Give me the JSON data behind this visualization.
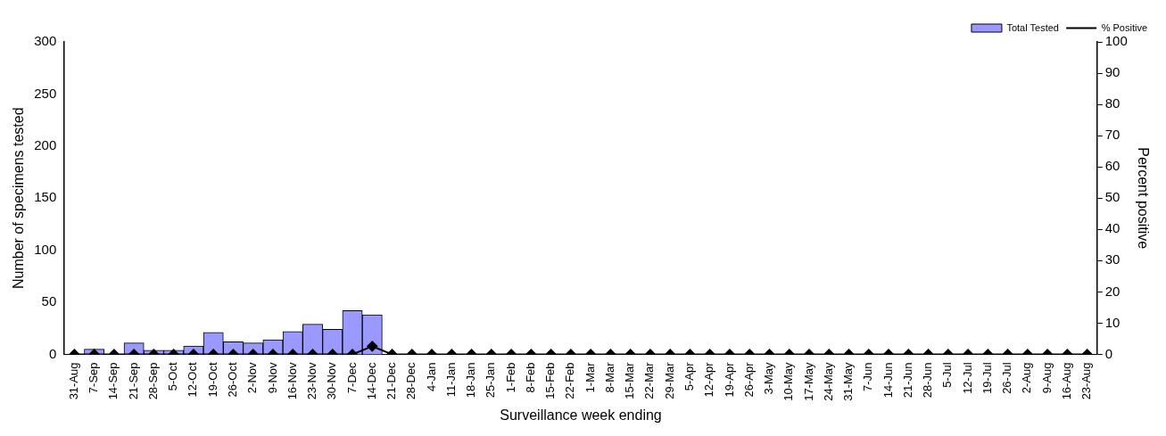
{
  "chart_data": {
    "type": "bar",
    "xlabel": "Surveillance week ending",
    "ylabel": "Number of specimens tested",
    "y2label": "Percent positive",
    "categories": [
      "31-Aug",
      "7-Sep",
      "14-Sep",
      "21-Sep",
      "28-Sep",
      "5-Oct",
      "12-Oct",
      "19-Oct",
      "26-Oct",
      "2-Nov",
      "9-Nov",
      "16-Nov",
      "23-Nov",
      "30-Nov",
      "7-Dec",
      "14-Dec",
      "21-Dec",
      "28-Dec",
      "4-Jan",
      "11-Jan",
      "18-Jan",
      "25-Jan",
      "1-Feb",
      "8-Feb",
      "15-Feb",
      "22-Feb",
      "1-Mar",
      "8-Mar",
      "15-Mar",
      "22-Mar",
      "29-Mar",
      "5-Apr",
      "12-Apr",
      "19-Apr",
      "26-Apr",
      "3-May",
      "10-May",
      "17-May",
      "24-May",
      "31-May",
      "7-Jun",
      "14-Jun",
      "21-Jun",
      "28-Jun",
      "5-Jul",
      "12-Jul",
      "19-Jul",
      "26-Jul",
      "2-Aug",
      "9-Aug",
      "16-Aug",
      "23-Aug"
    ],
    "series": [
      {
        "name": "Total Tested",
        "color": "#9999ff",
        "values": [
          0,
          5,
          0,
          11,
          4,
          4,
          8,
          21,
          12,
          11,
          14,
          22,
          29,
          24,
          42,
          38,
          0,
          0,
          0,
          0,
          0,
          0,
          0,
          0,
          0,
          0,
          0,
          0,
          0,
          0,
          0,
          0,
          0,
          0,
          0,
          0,
          0,
          0,
          0,
          0,
          0,
          0,
          0,
          0,
          0,
          0,
          0,
          0,
          0,
          0,
          0,
          0
        ]
      },
      {
        "name": "% Positive",
        "type": "line",
        "axis": "y2",
        "color": "#000000",
        "values": [
          0,
          0,
          0,
          0,
          0,
          0,
          0,
          0,
          0,
          0,
          0,
          0,
          0,
          0,
          0,
          2.6,
          0,
          0,
          0,
          0,
          0,
          0,
          0,
          0,
          0,
          0,
          0,
          0,
          0,
          0,
          0,
          0,
          0,
          0,
          0,
          0,
          0,
          0,
          0,
          0,
          0,
          0,
          0,
          0,
          0,
          0,
          0,
          0,
          0,
          0,
          0,
          0
        ]
      }
    ],
    "ylim": [
      0,
      300
    ],
    "yticks": [
      0,
      50,
      100,
      150,
      200,
      250,
      300
    ],
    "y2lim": [
      0,
      100
    ],
    "y2ticks": [
      0,
      10,
      20,
      30,
      40,
      50,
      60,
      70,
      80,
      90,
      100
    ],
    "grid": false,
    "legend": "top right",
    "marker": "diamond",
    "line_style": "solid"
  }
}
